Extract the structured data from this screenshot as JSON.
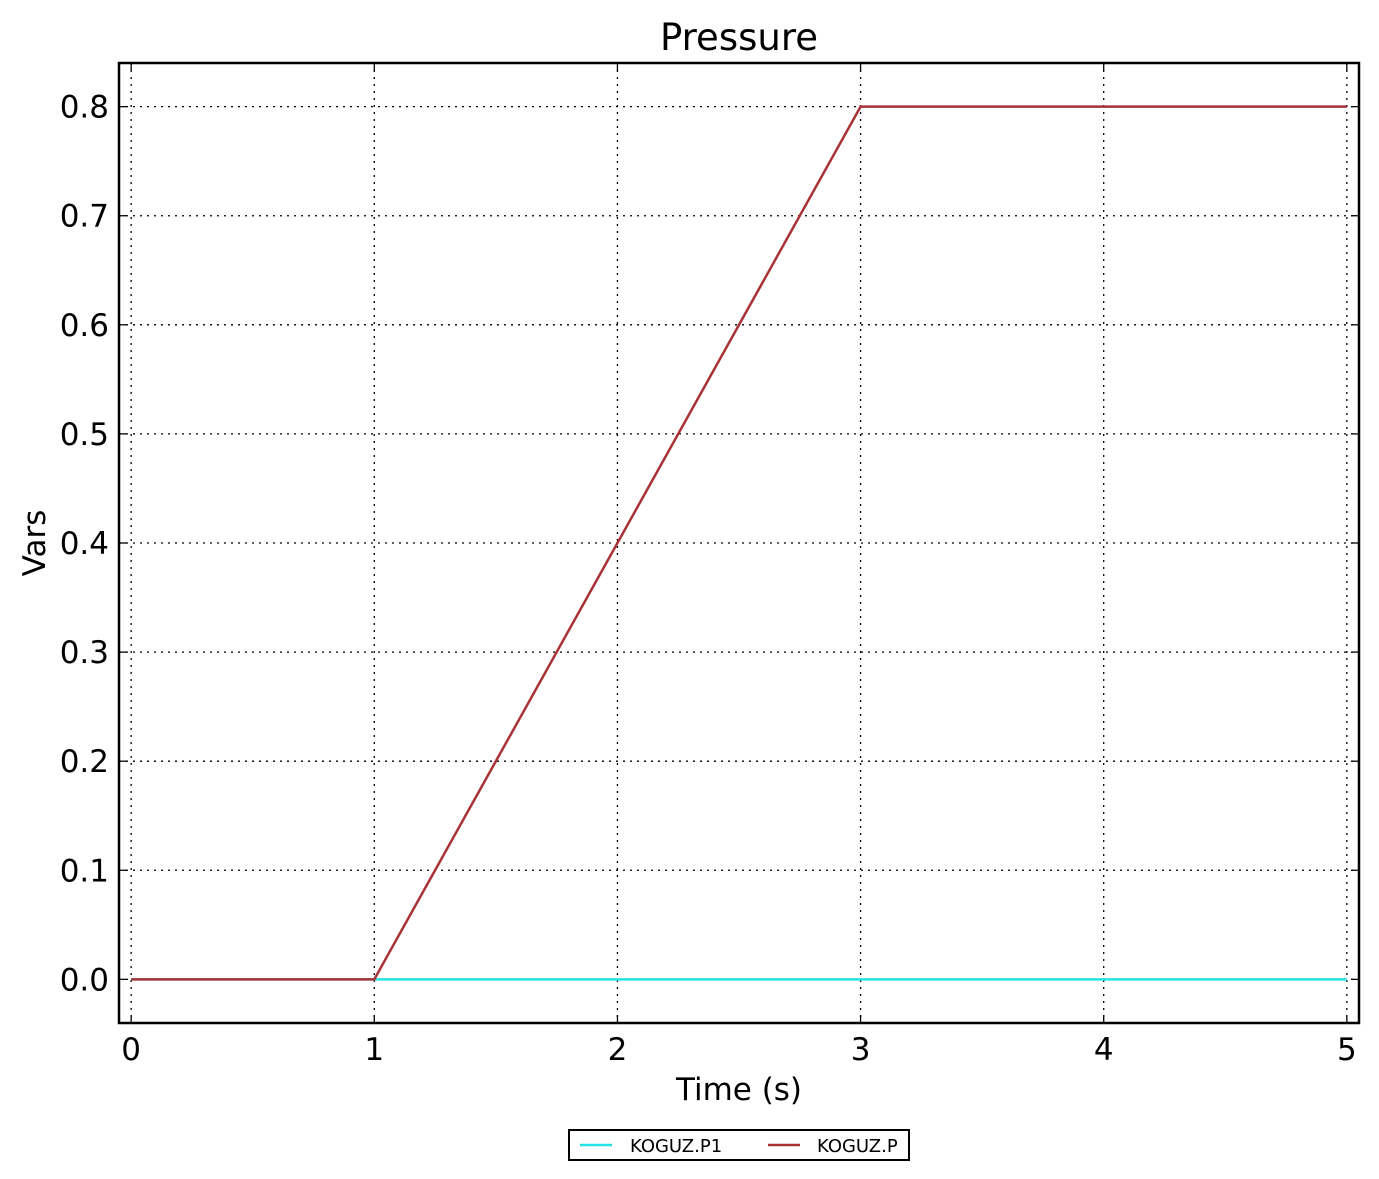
{
  "chart_data": {
    "type": "line",
    "title": "Pressure",
    "xlabel": "Time (s)",
    "ylabel": "Vars",
    "xlim": [
      -0.05,
      5.05
    ],
    "ylim": [
      -0.04,
      0.84
    ],
    "xticks": [
      0,
      1,
      2,
      3,
      4,
      5
    ],
    "xtick_labels": [
      "0",
      "1",
      "2",
      "3",
      "4",
      "5"
    ],
    "yticks": [
      0.0,
      0.1,
      0.2,
      0.3,
      0.4,
      0.5,
      0.6,
      0.7,
      0.8
    ],
    "ytick_labels": [
      "0.0",
      "0.1",
      "0.2",
      "0.3",
      "0.4",
      "0.5",
      "0.6",
      "0.7",
      "0.8"
    ],
    "grid": true,
    "legend_position": "bottom-center",
    "series": [
      {
        "name": "KOGUZ.P1",
        "color": "#22e5e5",
        "x": [
          0,
          5
        ],
        "y": [
          0.0,
          0.0
        ]
      },
      {
        "name": "KOGUZ.P",
        "color": "#a83235",
        "x": [
          0,
          1,
          3,
          5
        ],
        "y": [
          0.0,
          0.0,
          0.8,
          0.8
        ]
      }
    ]
  }
}
